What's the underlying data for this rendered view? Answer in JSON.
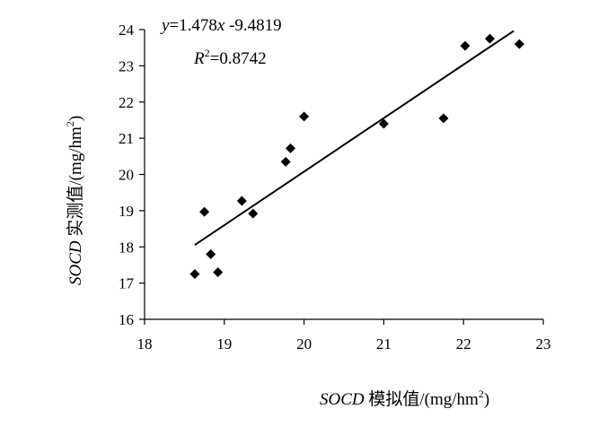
{
  "chart_data": {
    "type": "scatter",
    "title": "",
    "xlabel": {
      "italic": "SOCD",
      "text": " 模拟值/(mg/hm",
      "sup": "2",
      "tail": ")"
    },
    "ylabel": {
      "italic": "SOCD",
      "text": " 实测值/(mg/hm",
      "sup": "2",
      "tail": ")"
    },
    "xlim": [
      18,
      23
    ],
    "ylim": [
      16,
      24
    ],
    "xticks": [
      18,
      19,
      20,
      21,
      22,
      23
    ],
    "yticks": [
      16,
      17,
      18,
      19,
      20,
      21,
      22,
      23,
      24
    ],
    "grid": false,
    "legend": "none",
    "points": [
      {
        "x": 18.63,
        "y": 17.25
      },
      {
        "x": 18.75,
        "y": 18.97
      },
      {
        "x": 18.83,
        "y": 17.8
      },
      {
        "x": 18.92,
        "y": 17.3
      },
      {
        "x": 19.22,
        "y": 19.27
      },
      {
        "x": 19.36,
        "y": 18.92
      },
      {
        "x": 19.77,
        "y": 20.35
      },
      {
        "x": 19.83,
        "y": 20.72
      },
      {
        "x": 20.0,
        "y": 21.6
      },
      {
        "x": 21.0,
        "y": 21.4
      },
      {
        "x": 21.75,
        "y": 21.55
      },
      {
        "x": 22.02,
        "y": 23.55
      },
      {
        "x": 22.33,
        "y": 23.75
      },
      {
        "x": 22.7,
        "y": 23.6
      }
    ],
    "trendline": {
      "slope": 1.478,
      "intercept": -9.4819,
      "x_range": [
        18.63,
        22.63
      ],
      "equation": {
        "y": "y",
        "eq": "=1.478",
        "x": "x",
        "rest": " -9.4819"
      },
      "r2": {
        "r": "R",
        "sup": "2",
        "value": "=0.8742"
      }
    },
    "marker_color": "#000000",
    "line_color": "#000000"
  }
}
